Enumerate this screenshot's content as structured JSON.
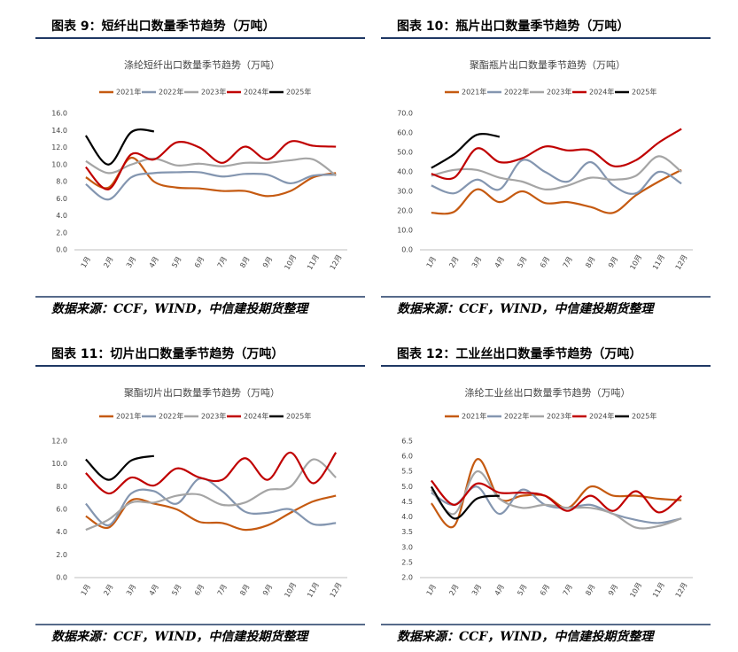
{
  "headers": [
    "图表 9：短纤出口数量季节趋势（万吨）",
    "图表 10：瓶片出口数量季节趋势（万吨）",
    "图表 11：切片出口数量季节趋势（万吨）",
    "图表 12：工业丝出口数量季节趋势（万吨）"
  ],
  "sources": [
    "数据来源：CCF，WIND，中信建投期货整理",
    "数据来源：CCF，WIND，中信建投期货整理",
    "数据来源：CCF，WIND，中信建投期货整理",
    "数据来源：CCF，WIND，中信建投期货整理"
  ],
  "chart_data": [
    {
      "type": "line",
      "title": "涤纶短纤出口数量季节趋势（万吨）",
      "categories": [
        "1月",
        "2月",
        "3月",
        "4月",
        "5月",
        "6月",
        "7月",
        "8月",
        "9月",
        "10月",
        "11月",
        "12月"
      ],
      "series": [
        {
          "name": "2021年",
          "color": "#c55a11",
          "values": [
            8.5,
            7.3,
            10.8,
            8.0,
            7.3,
            7.2,
            6.9,
            6.9,
            6.3,
            6.9,
            8.5,
            9.0
          ]
        },
        {
          "name": "2022年",
          "color": "#8496b0",
          "values": [
            7.7,
            5.9,
            8.5,
            9.0,
            9.1,
            9.1,
            8.6,
            8.9,
            8.8,
            7.8,
            8.7,
            8.8
          ]
        },
        {
          "name": "2023年",
          "color": "#a5a5a5",
          "values": [
            10.4,
            9.0,
            10.0,
            10.7,
            9.9,
            10.1,
            9.8,
            10.2,
            10.2,
            10.5,
            10.6,
            8.7
          ]
        },
        {
          "name": "2024年",
          "color": "#c00000",
          "values": [
            9.7,
            7.1,
            11.2,
            10.6,
            12.6,
            12.0,
            10.2,
            12.1,
            10.6,
            12.7,
            12.2,
            12.1
          ]
        },
        {
          "name": "2025年",
          "color": "#000000",
          "values": [
            13.4,
            10.0,
            13.8,
            13.9,
            null,
            null,
            null,
            null,
            null,
            null,
            null,
            null
          ]
        }
      ],
      "ylim": [
        0,
        16
      ],
      "yticks": [
        {
          "value": 0,
          "label": "0.0"
        },
        {
          "value": 2,
          "label": "2.0"
        },
        {
          "value": 4,
          "label": "4.0"
        },
        {
          "value": 6,
          "label": "6.0"
        },
        {
          "value": 8,
          "label": "8.0"
        },
        {
          "value": 10,
          "label": "10.0"
        },
        {
          "value": 12,
          "label": "12.0"
        },
        {
          "value": 14,
          "label": "14.0"
        },
        {
          "value": 16,
          "label": "16.0"
        }
      ],
      "grid": false,
      "legend": "top"
    },
    {
      "type": "line",
      "title": "聚酯瓶片出口数量季节趋势（万吨）",
      "categories": [
        "1月",
        "2月",
        "3月",
        "4月",
        "5月",
        "6月",
        "7月",
        "8月",
        "9月",
        "10月",
        "11月",
        "12月"
      ],
      "series": [
        {
          "name": "2021年",
          "color": "#c55a11",
          "values": [
            19,
            19.5,
            31,
            24.5,
            30,
            24,
            24.5,
            22,
            19,
            28,
            35,
            41
          ]
        },
        {
          "name": "2022年",
          "color": "#8496b0",
          "values": [
            33,
            29,
            36,
            31,
            46,
            40,
            35,
            45,
            33,
            29,
            40,
            34
          ]
        },
        {
          "name": "2023年",
          "color": "#a5a5a5",
          "values": [
            38,
            41,
            41,
            37,
            35,
            31,
            33,
            37,
            36,
            38,
            48,
            40
          ]
        },
        {
          "name": "2024年",
          "color": "#c00000",
          "values": [
            39,
            37,
            52,
            45,
            47,
            53,
            51,
            51,
            43,
            46,
            55,
            62
          ]
        },
        {
          "name": "2025年",
          "color": "#000000",
          "values": [
            42,
            49,
            59,
            58,
            null,
            null,
            null,
            null,
            null,
            null,
            null,
            null
          ]
        }
      ],
      "ylim": [
        0,
        70
      ],
      "yticks": [
        {
          "value": 0,
          "label": "0.0"
        },
        {
          "value": 10,
          "label": "10.0"
        },
        {
          "value": 20,
          "label": "20.0"
        },
        {
          "value": 30,
          "label": "30.0"
        },
        {
          "value": 40,
          "label": "40.0"
        },
        {
          "value": 50,
          "label": "50.0"
        },
        {
          "value": 60,
          "label": "60.0"
        },
        {
          "value": 70,
          "label": "70.0"
        }
      ],
      "grid": false,
      "legend": "top"
    },
    {
      "type": "line",
      "title": "聚酯切片出口数量季节趋势（万吨）",
      "categories": [
        "1月",
        "2月",
        "3月",
        "4月",
        "5月",
        "6月",
        "7月",
        "8月",
        "9月",
        "10月",
        "11月",
        "12月"
      ],
      "series": [
        {
          "name": "2021年",
          "color": "#c55a11",
          "values": [
            5.4,
            4.4,
            6.8,
            6.5,
            6.0,
            4.9,
            4.8,
            4.2,
            4.6,
            5.7,
            6.7,
            7.2
          ]
        },
        {
          "name": "2022年",
          "color": "#8496b0",
          "values": [
            6.5,
            4.6,
            7.4,
            7.6,
            6.5,
            8.7,
            7.6,
            5.8,
            5.7,
            6.0,
            4.7,
            4.8
          ]
        },
        {
          "name": "2023年",
          "color": "#a5a5a5",
          "values": [
            4.2,
            5.1,
            6.6,
            6.6,
            7.2,
            7.3,
            6.4,
            6.6,
            7.7,
            8.0,
            10.4,
            8.8
          ]
        },
        {
          "name": "2024年",
          "color": "#c00000",
          "values": [
            9.2,
            7.4,
            8.8,
            8.1,
            9.6,
            8.8,
            8.6,
            10.5,
            8.6,
            11.0,
            8.3,
            11.0
          ]
        },
        {
          "name": "2025年",
          "color": "#000000",
          "values": [
            10.4,
            8.6,
            10.3,
            10.7,
            null,
            null,
            null,
            null,
            null,
            null,
            null,
            null
          ]
        }
      ],
      "ylim": [
        0,
        12
      ],
      "yticks": [
        {
          "value": 0,
          "label": "0.0"
        },
        {
          "value": 2,
          "label": "2.0"
        },
        {
          "value": 4,
          "label": "4.0"
        },
        {
          "value": 6,
          "label": "6.0"
        },
        {
          "value": 8,
          "label": "8.0"
        },
        {
          "value": 10,
          "label": "10.0"
        },
        {
          "value": 12,
          "label": "12.0"
        }
      ],
      "grid": false,
      "legend": "top"
    },
    {
      "type": "line",
      "title": "涤纶工业丝出口数量季节趋势（万吨）",
      "categories": [
        "1月",
        "2月",
        "3月",
        "4月",
        "5月",
        "6月",
        "7月",
        "8月",
        "9月",
        "10月",
        "11月",
        "12月"
      ],
      "series": [
        {
          "name": "2021年",
          "color": "#c55a11",
          "values": [
            4.45,
            3.7,
            5.9,
            4.6,
            4.7,
            4.7,
            4.3,
            5.0,
            4.7,
            4.7,
            4.6,
            4.55
          ]
        },
        {
          "name": "2022年",
          "color": "#8496b0",
          "values": [
            4.8,
            4.4,
            5.0,
            4.1,
            4.9,
            4.4,
            4.3,
            4.4,
            4.1,
            3.9,
            3.8,
            3.95
          ]
        },
        {
          "name": "2023年",
          "color": "#a5a5a5",
          "values": [
            4.9,
            4.1,
            5.5,
            4.6,
            4.3,
            4.4,
            4.3,
            4.3,
            4.1,
            3.65,
            3.7,
            3.95
          ]
        },
        {
          "name": "2024年",
          "color": "#c00000",
          "values": [
            5.2,
            4.4,
            5.1,
            4.8,
            4.8,
            4.7,
            4.2,
            4.7,
            4.2,
            4.85,
            4.15,
            4.7
          ]
        },
        {
          "name": "2025年",
          "color": "#000000",
          "values": [
            5.0,
            3.95,
            4.6,
            4.7,
            null,
            null,
            null,
            null,
            null,
            null,
            null,
            null
          ]
        }
      ],
      "ylim": [
        2,
        6.5
      ],
      "yticks": [
        {
          "value": 2,
          "label": "2.0"
        },
        2.5,
        {
          "value": 3,
          "label": "3.0"
        },
        3.5,
        {
          "value": 4,
          "label": "4.0"
        },
        4.5,
        {
          "value": 5,
          "label": "5.0"
        },
        5.5,
        {
          "value": 6,
          "label": "6.0"
        },
        6.5
      ],
      "grid": false,
      "legend": "top"
    }
  ]
}
